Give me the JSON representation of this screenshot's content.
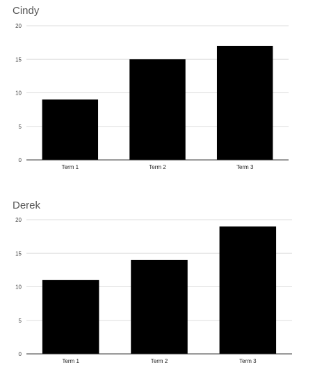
{
  "chart_data": [
    {
      "type": "bar",
      "title": "Cindy",
      "categories": [
        "Term 1",
        "Term 2",
        "Term 3"
      ],
      "values": [
        9,
        15,
        17
      ],
      "xlabel": "",
      "ylabel": "",
      "ylim": [
        0,
        20
      ],
      "yticks": [
        0,
        5,
        10,
        15,
        20
      ],
      "grid": true,
      "legend": "none",
      "bar_color": "#000000",
      "grid_color": "#dddddd",
      "axis_color": "#333333"
    },
    {
      "type": "bar",
      "title": "Derek",
      "categories": [
        "Term 1",
        "Term 2",
        "Term 3"
      ],
      "values": [
        11,
        14,
        19
      ],
      "xlabel": "",
      "ylabel": "",
      "ylim": [
        0,
        20
      ],
      "yticks": [
        0,
        5,
        10,
        15,
        20
      ],
      "grid": true,
      "legend": "none",
      "bar_color": "#000000",
      "grid_color": "#dddddd",
      "axis_color": "#333333"
    }
  ]
}
